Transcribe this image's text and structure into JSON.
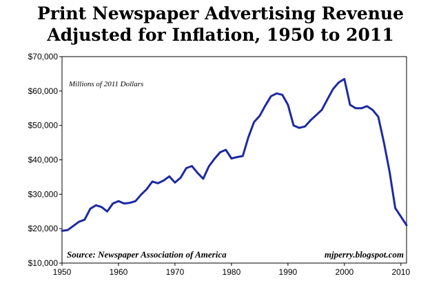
{
  "chart_data": {
    "type": "line",
    "title_line1": "Print Newspaper Advertising Revenue",
    "title_line2": "Adjusted for Inflation, 1950 to 2011",
    "units_note": "Millions of 2011 Dollars",
    "source": "Source: Newspaper Association of America",
    "credit": "mjperry.blogspot.com",
    "xlabel": "",
    "ylabel": "",
    "xlim": [
      1950,
      2011
    ],
    "ylim": [
      10000,
      70000
    ],
    "x_ticks": [
      1950,
      1960,
      1970,
      1980,
      1990,
      2000,
      2010
    ],
    "y_ticks": [
      10000,
      20000,
      30000,
      40000,
      50000,
      60000,
      70000
    ],
    "y_tick_labels": [
      "$10,000",
      "$20,000",
      "$30,000",
      "$40,000",
      "$50,000",
      "$60,000",
      "$70,000"
    ],
    "grid": false,
    "line_color": "#1c2aa0",
    "series": [
      {
        "name": "",
        "x": [
          1950,
          1951,
          1952,
          1953,
          1954,
          1955,
          1956,
          1957,
          1958,
          1959,
          1960,
          1961,
          1962,
          1963,
          1964,
          1965,
          1966,
          1967,
          1968,
          1969,
          1970,
          1971,
          1972,
          1973,
          1974,
          1975,
          1976,
          1977,
          1978,
          1979,
          1980,
          1981,
          1982,
          1983,
          1984,
          1985,
          1986,
          1987,
          1988,
          1989,
          1990,
          1991,
          1992,
          1993,
          1994,
          1995,
          1996,
          1997,
          1998,
          1999,
          2000,
          2001,
          2002,
          2003,
          2004,
          2005,
          2006,
          2007,
          2008,
          2009,
          2010,
          2011
        ],
        "values": [
          19400,
          19600,
          20800,
          22000,
          22600,
          25800,
          26800,
          26300,
          25000,
          27300,
          28000,
          27300,
          27500,
          28000,
          29900,
          31500,
          33700,
          33200,
          34000,
          35200,
          33400,
          34800,
          37600,
          38200,
          36200,
          34500,
          38100,
          40300,
          42200,
          42900,
          40400,
          40800,
          41100,
          46600,
          51000,
          52800,
          55800,
          58500,
          59300,
          58900,
          56000,
          50000,
          49300,
          49700,
          51500,
          53000,
          54500,
          57600,
          60600,
          62500,
          63500,
          56000,
          55000,
          55000,
          55600,
          54500,
          52500,
          45000,
          36500,
          26000,
          23500,
          21000
        ]
      }
    ]
  }
}
